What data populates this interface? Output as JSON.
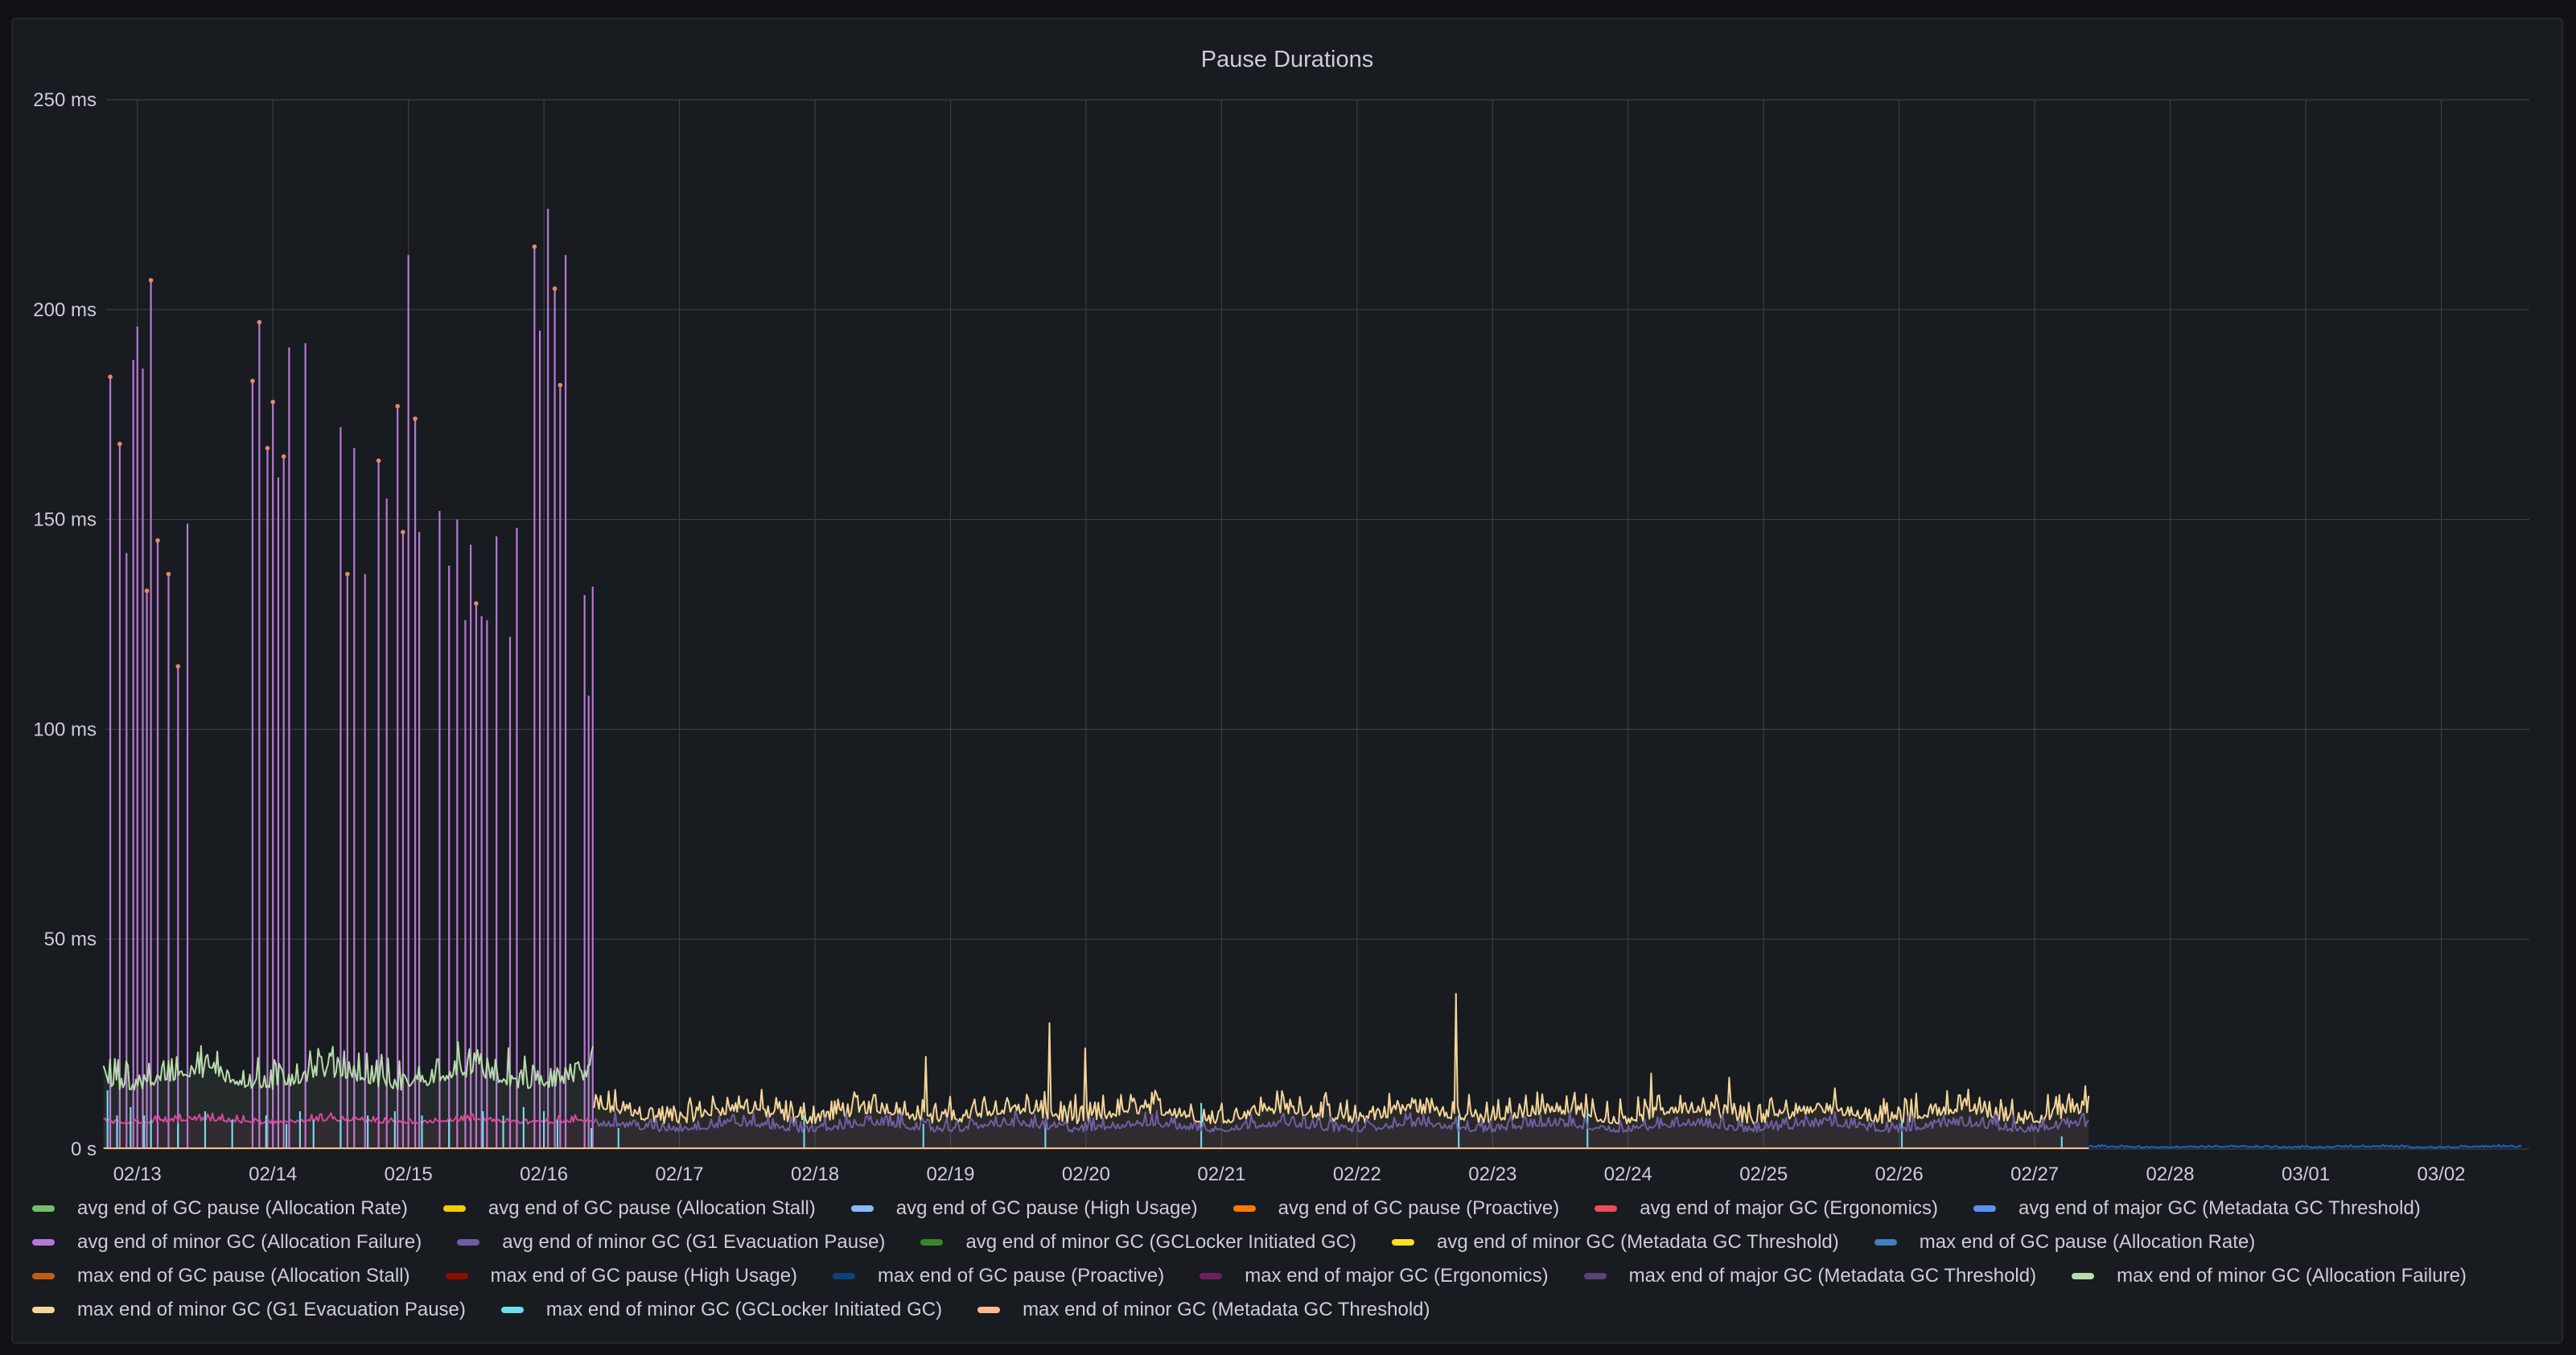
{
  "panel": {
    "title": "Pause Durations"
  },
  "colors": {
    "background": "#181b1f",
    "grid": "#3a3d44",
    "text": "#ccccdc"
  },
  "legend": [
    {
      "label": "avg end of GC pause (Allocation Rate)",
      "color": "#73bf69"
    },
    {
      "label": "avg end of GC pause (Allocation Stall)",
      "color": "#f2cc0c"
    },
    {
      "label": "avg end of GC pause (High Usage)",
      "color": "#8ab8ff"
    },
    {
      "label": "avg end of GC pause (Proactive)",
      "color": "#ff780a"
    },
    {
      "label": "avg end of major GC (Ergonomics)",
      "color": "#f2495c"
    },
    {
      "label": "avg end of major GC (Metadata GC Threshold)",
      "color": "#5794f2"
    },
    {
      "label": "avg end of minor GC (Allocation Failure)",
      "color": "#b877d9"
    },
    {
      "label": "avg end of minor GC (G1 Evacuation Pause)",
      "color": "#705da0"
    },
    {
      "label": "avg end of minor GC (GCLocker Initiated GC)",
      "color": "#37872d"
    },
    {
      "label": "avg end of minor GC (Metadata GC Threshold)",
      "color": "#fade2a"
    },
    {
      "label": "max end of GC pause (Allocation Rate)",
      "color": "#447ebc"
    },
    {
      "label": "max end of GC pause (Allocation Stall)",
      "color": "#c15c17"
    },
    {
      "label": "max end of GC pause (High Usage)",
      "color": "#890f02"
    },
    {
      "label": "max end of GC pause (Proactive)",
      "color": "#0a437c"
    },
    {
      "label": "max end of major GC (Ergonomics)",
      "color": "#6d1f62"
    },
    {
      "label": "max end of major GC (Metadata GC Threshold)",
      "color": "#584477"
    },
    {
      "label": "max end of minor GC (Allocation Failure)",
      "color": "#b7dbab"
    },
    {
      "label": "max end of minor GC (G1 Evacuation Pause)",
      "color": "#f4d598"
    },
    {
      "label": "max end of minor GC (GCLocker Initiated GC)",
      "color": "#70dbed"
    },
    {
      "label": "max end of minor GC (Metadata GC Threshold)",
      "color": "#f9ba8f"
    }
  ],
  "chart_data": {
    "type": "line",
    "title": "Pause Durations",
    "y_unit": "ms",
    "ylim": [
      0,
      250
    ],
    "y_ticks": [
      {
        "value": 0,
        "label": "0 s"
      },
      {
        "value": 50,
        "label": "50 ms"
      },
      {
        "value": 100,
        "label": "100 ms"
      },
      {
        "value": 150,
        "label": "150 ms"
      },
      {
        "value": 200,
        "label": "200 ms"
      },
      {
        "value": 250,
        "label": "250 ms"
      }
    ],
    "x_ticks": [
      "02/13",
      "02/14",
      "02/15",
      "02/16",
      "02/17",
      "02/18",
      "02/19",
      "02/20",
      "02/21",
      "02/22",
      "02/23",
      "02/24",
      "02/25",
      "02/26",
      "02/27",
      "02/28",
      "03/01",
      "03/02"
    ],
    "x_range_days": [
      -0.23,
      17.65
    ],
    "grid": true,
    "legend_position": "bottom",
    "series": [
      {
        "name": "max end of minor GC (Allocation Failure)",
        "color": "#b877d9",
        "style": "spikes",
        "x_range_days": [
          -0.25,
          3.37
        ],
        "spikes": [
          [
            -0.2,
            184
          ],
          [
            -0.13,
            168
          ],
          [
            -0.08,
            142
          ],
          [
            -0.03,
            188
          ],
          [
            0.0,
            196
          ],
          [
            0.04,
            186
          ],
          [
            0.07,
            133
          ],
          [
            0.1,
            207
          ],
          [
            0.15,
            145
          ],
          [
            0.23,
            137
          ],
          [
            0.3,
            115
          ],
          [
            0.37,
            149
          ],
          [
            0.85,
            183
          ],
          [
            0.9,
            197
          ],
          [
            0.96,
            167
          ],
          [
            1.0,
            178
          ],
          [
            1.04,
            160
          ],
          [
            1.08,
            165
          ],
          [
            1.12,
            191
          ],
          [
            1.24,
            192
          ],
          [
            1.5,
            172
          ],
          [
            1.55,
            137
          ],
          [
            1.6,
            167
          ],
          [
            1.68,
            137
          ],
          [
            1.78,
            164
          ],
          [
            1.84,
            155
          ],
          [
            1.92,
            177
          ],
          [
            1.96,
            147
          ],
          [
            2.0,
            213
          ],
          [
            2.05,
            174
          ],
          [
            2.08,
            147
          ],
          [
            2.23,
            152
          ],
          [
            2.3,
            139
          ],
          [
            2.36,
            150
          ],
          [
            2.42,
            126
          ],
          [
            2.46,
            144
          ],
          [
            2.5,
            130
          ],
          [
            2.54,
            127
          ],
          [
            2.58,
            126
          ],
          [
            2.65,
            146
          ],
          [
            2.75,
            122
          ],
          [
            2.8,
            148
          ],
          [
            2.93,
            215
          ],
          [
            2.97,
            195
          ],
          [
            3.03,
            224
          ],
          [
            3.08,
            205
          ],
          [
            3.12,
            182
          ],
          [
            3.16,
            213
          ],
          [
            3.3,
            132
          ],
          [
            3.33,
            108
          ],
          [
            3.36,
            134
          ]
        ],
        "markers": [
          [
            -0.2,
            184
          ],
          [
            -0.13,
            168
          ],
          [
            0.07,
            133
          ],
          [
            0.1,
            207
          ],
          [
            0.15,
            145
          ],
          [
            0.23,
            137
          ],
          [
            0.3,
            115
          ],
          [
            0.85,
            183
          ],
          [
            0.9,
            197
          ],
          [
            0.96,
            167
          ],
          [
            1.0,
            178
          ],
          [
            1.08,
            165
          ],
          [
            1.55,
            137
          ],
          [
            1.78,
            164
          ],
          [
            1.92,
            177
          ],
          [
            1.96,
            147
          ],
          [
            2.05,
            174
          ],
          [
            2.5,
            130
          ],
          [
            2.93,
            215
          ],
          [
            3.08,
            205
          ],
          [
            3.12,
            182
          ]
        ]
      },
      {
        "name": "max end of minor GC (G1 Evacuation Pause)",
        "color": "#f4d598",
        "style": "noise",
        "x_range_days": [
          3.37,
          14.4
        ],
        "baseline_ms": 6,
        "amplitude_ms": 7,
        "peaks": [
          [
            5.82,
            22
          ],
          [
            6.73,
            30
          ],
          [
            6.99,
            24
          ],
          [
            9.73,
            37
          ],
          [
            11.17,
            18
          ],
          [
            11.75,
            17
          ],
          [
            14.37,
            15
          ]
        ]
      },
      {
        "name": "max end of minor GC (Allocation Failure)",
        "color": "#b7dbab",
        "style": "noise",
        "x_range_days": [
          -0.25,
          3.37
        ],
        "baseline_ms": 14,
        "amplitude_ms": 9
      },
      {
        "name": "avg end of minor GC (Allocation Failure)",
        "color": "#d44a9a",
        "style": "noise",
        "x_range_days": [
          -0.25,
          3.37
        ],
        "baseline_ms": 6,
        "amplitude_ms": 2
      },
      {
        "name": "max end of minor GC (GCLocker Initiated GC)",
        "color": "#70dbed",
        "style": "spikes",
        "x_range_days": [
          -0.25,
          14.4
        ],
        "spikes": [
          [
            -0.22,
            14
          ],
          [
            -0.15,
            8
          ],
          [
            -0.05,
            10
          ],
          [
            0.05,
            8
          ],
          [
            0.1,
            7
          ],
          [
            0.3,
            6
          ],
          [
            0.5,
            9
          ],
          [
            0.7,
            7
          ],
          [
            0.95,
            8
          ],
          [
            1.1,
            6
          ],
          [
            1.2,
            9
          ],
          [
            1.3,
            7
          ],
          [
            1.5,
            7
          ],
          [
            1.7,
            8
          ],
          [
            1.9,
            9
          ],
          [
            2.1,
            8
          ],
          [
            2.3,
            7
          ],
          [
            2.55,
            9
          ],
          [
            2.7,
            8
          ],
          [
            2.85,
            10
          ],
          [
            3.0,
            9
          ],
          [
            3.1,
            7
          ],
          [
            3.35,
            5
          ],
          [
            3.55,
            5
          ],
          [
            4.92,
            8
          ],
          [
            5.8,
            6
          ],
          [
            6.7,
            6
          ],
          [
            7.85,
            11
          ],
          [
            9.75,
            8
          ],
          [
            10.7,
            9
          ],
          [
            13.02,
            7
          ],
          [
            14.2,
            3
          ]
        ]
      },
      {
        "name": "avg end of minor GC (G1 Evacuation Pause)",
        "color": "#705da0",
        "style": "noise",
        "x_range_days": [
          3.37,
          14.4
        ],
        "baseline_ms": 4,
        "amplitude_ms": 4
      },
      {
        "name": "max end of GC pause (Proactive)",
        "color": "#1f60c4",
        "style": "noise",
        "x_range_days": [
          14.4,
          17.6
        ],
        "baseline_ms": 0.3,
        "amplitude_ms": 0.6
      },
      {
        "name": "max end of minor GC (Metadata GC Threshold)",
        "color": "#f9ba8f",
        "style": "flat",
        "x_range_days": [
          -0.25,
          14.4
        ],
        "value_ms": 0.2
      }
    ]
  }
}
